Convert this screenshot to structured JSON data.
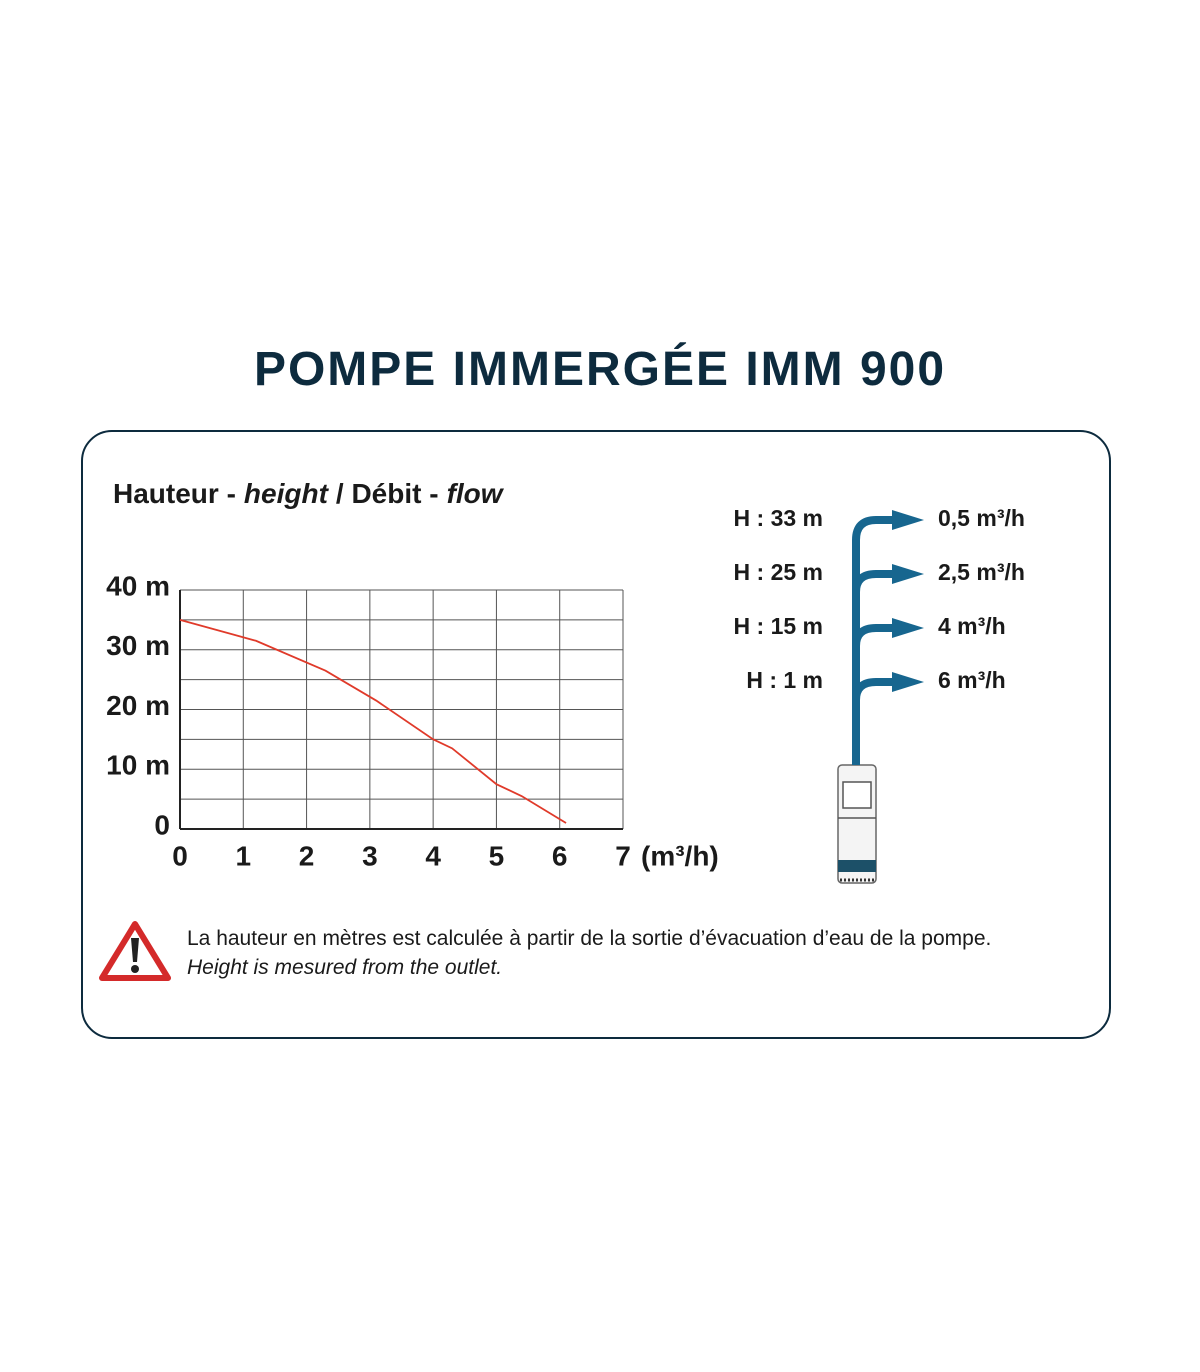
{
  "title": "POMPE IMMERGÉE IMM 900",
  "chart_data": {
    "type": "line",
    "title": [
      "Hauteur -",
      "height",
      "/ Débit -",
      "flow"
    ],
    "x": [
      0,
      1.2,
      2.3,
      3.1,
      4,
      4.3,
      5,
      5.4,
      6.1
    ],
    "series": [
      {
        "color": "#e03a2a",
        "values": [
          35,
          31.5,
          26.5,
          21.5,
          15,
          13.5,
          7.5,
          5.5,
          1
        ]
      }
    ],
    "xlim": [
      0,
      7
    ],
    "xticks": [
      0,
      1,
      2,
      3,
      4,
      5,
      6,
      7
    ],
    "xlabel": "(m³/h)",
    "ylim": [
      0,
      40
    ],
    "yticks": [
      0,
      {
        "value": 10,
        "label": "10 m"
      },
      {
        "value": 20,
        "label": "20 m"
      },
      {
        "value": 30,
        "label": "30 m"
      },
      {
        "value": 40,
        "label": "40 m"
      }
    ],
    "minor_yticks": [
      5,
      15,
      25,
      35
    ],
    "grid": true
  },
  "outlets": [
    [
      "H : 33 m",
      "0,5 m³/h"
    ],
    [
      "H : 25 m",
      "2,5 m³/h"
    ],
    [
      "H : 15 m",
      "4 m³/h"
    ],
    [
      "H : 1 m",
      "6 m³/h"
    ]
  ],
  "note": [
    "La  hauteur en mètres est calculée à partir de la sortie d’évacuation d’eau de la pompe.",
    "Height is mesured from the outlet."
  ]
}
